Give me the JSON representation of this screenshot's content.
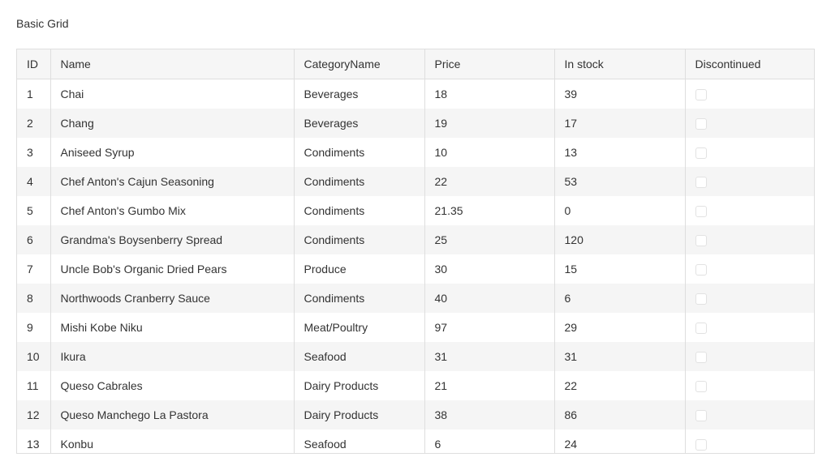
{
  "page": {
    "title": "Basic Grid"
  },
  "grid": {
    "columns": [
      "ID",
      "Name",
      "CategoryName",
      "Price",
      "In stock",
      "Discontinued"
    ],
    "rows": [
      {
        "id": "1",
        "name": "Chai",
        "category": "Beverages",
        "price": "18",
        "stock": "39",
        "discontinued": false
      },
      {
        "id": "2",
        "name": "Chang",
        "category": "Beverages",
        "price": "19",
        "stock": "17",
        "discontinued": false
      },
      {
        "id": "3",
        "name": "Aniseed Syrup",
        "category": "Condiments",
        "price": "10",
        "stock": "13",
        "discontinued": false
      },
      {
        "id": "4",
        "name": "Chef Anton's Cajun Seasoning",
        "category": "Condiments",
        "price": "22",
        "stock": "53",
        "discontinued": false
      },
      {
        "id": "5",
        "name": "Chef Anton's Gumbo Mix",
        "category": "Condiments",
        "price": "21.35",
        "stock": "0",
        "discontinued": false
      },
      {
        "id": "6",
        "name": "Grandma's Boysenberry Spread",
        "category": "Condiments",
        "price": "25",
        "stock": "120",
        "discontinued": false
      },
      {
        "id": "7",
        "name": "Uncle Bob's Organic Dried Pears",
        "category": "Produce",
        "price": "30",
        "stock": "15",
        "discontinued": false
      },
      {
        "id": "8",
        "name": "Northwoods Cranberry Sauce",
        "category": "Condiments",
        "price": "40",
        "stock": "6",
        "discontinued": false
      },
      {
        "id": "9",
        "name": "Mishi Kobe Niku",
        "category": "Meat/Poultry",
        "price": "97",
        "stock": "29",
        "discontinued": false
      },
      {
        "id": "10",
        "name": "Ikura",
        "category": "Seafood",
        "price": "31",
        "stock": "31",
        "discontinued": false
      },
      {
        "id": "11",
        "name": "Queso Cabrales",
        "category": "Dairy Products",
        "price": "21",
        "stock": "22",
        "discontinued": false
      },
      {
        "id": "12",
        "name": "Queso Manchego La Pastora",
        "category": "Dairy Products",
        "price": "38",
        "stock": "86",
        "discontinued": false
      },
      {
        "id": "13",
        "name": "Konbu",
        "category": "Seafood",
        "price": "6",
        "stock": "24",
        "discontinued": false
      }
    ]
  }
}
